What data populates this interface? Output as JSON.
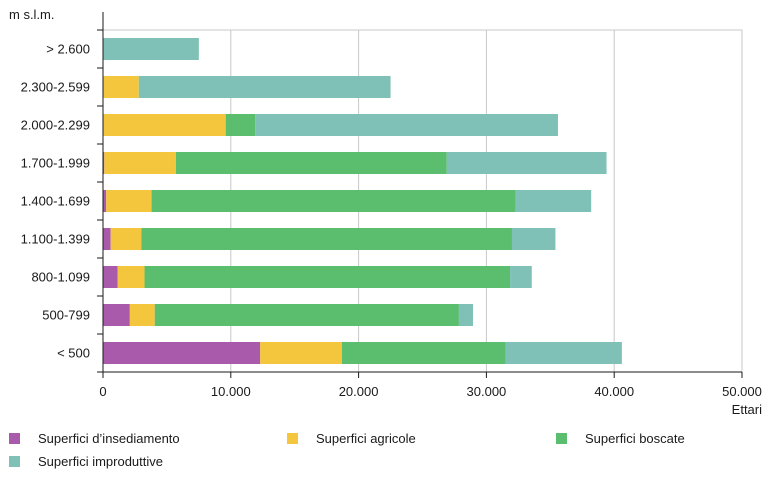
{
  "chart_data": {
    "type": "bar",
    "orientation": "horizontal",
    "stacked": true,
    "ylabel": "m s.l.m.",
    "xlabel": "Ettari",
    "xlim": [
      0,
      50000
    ],
    "xticks": [
      {
        "value": 0,
        "label": "0"
      },
      {
        "value": 10000,
        "label": "10.000"
      },
      {
        "value": 20000,
        "label": "20.000"
      },
      {
        "value": 30000,
        "label": "30.000"
      },
      {
        "value": 40000,
        "label": "40.000"
      },
      {
        "value": 50000,
        "label": "50.000"
      }
    ],
    "grid": true,
    "legend_position": "bottom",
    "categories": [
      "> 2.600",
      "2.300-2.599",
      "2.000-2.299",
      "1.700-1.999",
      "1.400-1.699",
      "1.100-1.399",
      "800-1.099",
      "500-799",
      "< 500"
    ],
    "series": [
      {
        "name": "Superfici d’insediamento",
        "color": "#a95aaa",
        "values": [
          0,
          0,
          0,
          100,
          250,
          600,
          1150,
          2100,
          12300
        ]
      },
      {
        "name": "Superfici agricole",
        "color": "#f4c63e",
        "values": [
          0,
          2800,
          9600,
          5600,
          3550,
          2400,
          2100,
          1950,
          6400
        ]
      },
      {
        "name": "Superfici boscate",
        "color": "#5bbd6e",
        "values": [
          0,
          0,
          2300,
          21200,
          28500,
          29000,
          28600,
          23800,
          12800
        ]
      },
      {
        "name": "Superfici improduttive",
        "color": "#7fc1b6",
        "values": [
          7500,
          19700,
          23700,
          12500,
          5900,
          3400,
          1700,
          1100,
          9100
        ]
      }
    ]
  }
}
